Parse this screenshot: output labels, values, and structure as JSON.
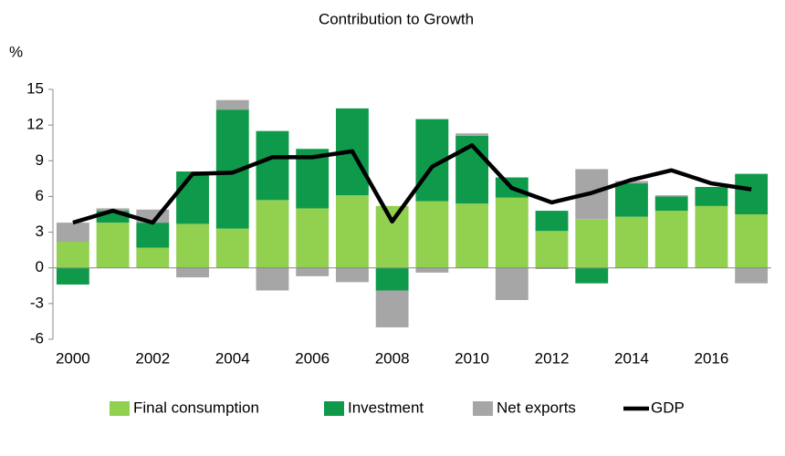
{
  "chart_data": {
    "type": "bar",
    "stacked": true,
    "title": "Contribution to Growth",
    "y_label": "%",
    "categories": [
      "2000",
      null,
      "2002",
      null,
      "2004",
      null,
      "2006",
      null,
      "2008",
      null,
      "2010",
      null,
      "2012",
      null,
      "2014",
      null,
      "2016",
      null
    ],
    "series": [
      {
        "name": "Final consumption",
        "color": "#92d050",
        "values": [
          2.2,
          3.8,
          1.7,
          3.7,
          3.3,
          5.7,
          5.0,
          6.1,
          5.2,
          5.6,
          5.4,
          5.9,
          3.1,
          4.1,
          4.3,
          4.8,
          5.2,
          4.5
        ]
      },
      {
        "name": "Investment",
        "color": "#0e9a4a",
        "values": [
          -1.4,
          1.0,
          2.1,
          4.4,
          10.0,
          5.8,
          5.0,
          7.3,
          -1.9,
          6.9,
          5.7,
          1.7,
          1.7,
          -1.3,
          2.8,
          1.2,
          1.6,
          3.4
        ]
      },
      {
        "name": "Net exports",
        "color": "#a6a6a6",
        "values": [
          1.6,
          0.2,
          1.1,
          -0.8,
          0.8,
          -1.9,
          -0.7,
          -1.2,
          -3.1,
          -0.4,
          0.2,
          -2.7,
          -0.1,
          4.2,
          0.2,
          0.1,
          0,
          -1.3
        ]
      },
      {
        "name": "GDP",
        "type": "line",
        "color": "#000000",
        "values": [
          3.8,
          4.8,
          3.8,
          7.9,
          8.0,
          9.3,
          9.3,
          9.8,
          3.9,
          8.5,
          10.3,
          6.7,
          5.5,
          6.3,
          7.4,
          8.2,
          7.1,
          6.6
        ]
      }
    ],
    "ylim": [
      -6,
      15
    ],
    "yticks": [
      -6,
      -3,
      0,
      3,
      6,
      9,
      12,
      15
    ],
    "grid": false,
    "legend": "bottom"
  }
}
